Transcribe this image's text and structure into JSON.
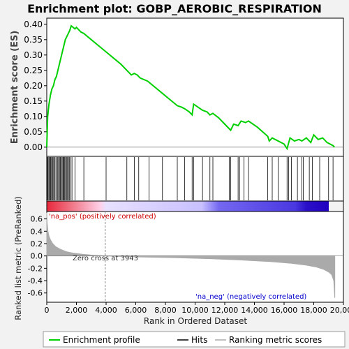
{
  "colors": {
    "background": "#f2f2f2",
    "plot_bg": "#ffffff",
    "enrichment_line": "#00d000",
    "hits": "#000000",
    "ranked_fill": "#aaaaaa",
    "pos_label": "#cc0000",
    "neg_label": "#0000cc",
    "zero_cross_line": "#888888"
  },
  "chart_data": [
    {
      "type": "line",
      "title": "Enrichment plot: GOBP_AEROBIC_RESPIRATION",
      "ylabel": "Enrichment score (ES)",
      "xlim": [
        0,
        20000
      ],
      "ylim": [
        -0.03,
        0.42
      ],
      "yticks": [
        "0.00",
        "0.05",
        "0.10",
        "0.15",
        "0.20",
        "0.25",
        "0.30",
        "0.35",
        "0.40"
      ],
      "grid": false,
      "series": [
        {
          "name": "Enrichment profile",
          "x": [
            0,
            60,
            150,
            250,
            350,
            450,
            550,
            650,
            750,
            850,
            950,
            1050,
            1150,
            1250,
            1350,
            1450,
            1550,
            1650,
            1900,
            2000,
            2300,
            2500,
            3000,
            3500,
            4000,
            4500,
            5000,
            5400,
            5700,
            5900,
            6100,
            6300,
            6800,
            7300,
            7800,
            8300,
            8800,
            9100,
            9300,
            9600,
            9800,
            9900,
            10200,
            10500,
            10800,
            11000,
            11200,
            11600,
            12100,
            12400,
            12600,
            12900,
            13100,
            13400,
            13600,
            14200,
            14900,
            15000,
            15200,
            15400,
            16000,
            16200,
            16400,
            16700,
            17000,
            17200,
            17500,
            17800,
            18000,
            18300,
            18600,
            18900,
            19100,
            19300,
            19400
          ],
          "y": [
            0.0,
            0.1,
            0.14,
            0.17,
            0.19,
            0.2,
            0.22,
            0.23,
            0.25,
            0.27,
            0.29,
            0.31,
            0.33,
            0.35,
            0.36,
            0.37,
            0.38,
            0.395,
            0.385,
            0.39,
            0.375,
            0.37,
            0.35,
            0.33,
            0.31,
            0.29,
            0.27,
            0.25,
            0.235,
            0.24,
            0.235,
            0.225,
            0.215,
            0.195,
            0.175,
            0.155,
            0.135,
            0.13,
            0.125,
            0.115,
            0.105,
            0.14,
            0.13,
            0.12,
            0.115,
            0.105,
            0.11,
            0.095,
            0.07,
            0.055,
            0.075,
            0.07,
            0.085,
            0.08,
            0.085,
            0.065,
            0.035,
            0.02,
            0.03,
            0.025,
            0.01,
            -0.005,
            0.03,
            0.02,
            0.025,
            0.02,
            0.03,
            0.015,
            0.04,
            0.025,
            0.03,
            0.015,
            0.01,
            0.005,
            0.0
          ]
        }
      ]
    },
    {
      "type": "scatter",
      "series": [
        {
          "name": "Hits",
          "x": [
            40,
            90,
            150,
            210,
            260,
            320,
            380,
            430,
            500,
            560,
            640,
            720,
            790,
            860,
            920,
            980,
            1040,
            1100,
            1150,
            1210,
            1270,
            1330,
            1400,
            1460,
            1520,
            1600,
            1700,
            1900,
            2500,
            4000,
            5400,
            5900,
            6200,
            6900,
            7800,
            8800,
            9300,
            9800,
            9900,
            10500,
            11000,
            11200,
            12300,
            12400,
            12900,
            13000,
            13300,
            13600,
            14900,
            15200,
            15600,
            16200,
            16300,
            16500,
            16900,
            17200,
            17300,
            17700,
            17900,
            18400,
            19000,
            19300
          ]
        }
      ]
    },
    {
      "type": "area",
      "xlabel": "Rank in Ordered Dataset",
      "ylabel": "Ranked list metric (PreRanked)",
      "xlim": [
        0,
        20000
      ],
      "ylim": [
        -0.75,
        0.72
      ],
      "xticks": [
        "0",
        "2,000",
        "4,000",
        "6,000",
        "8,000",
        "10,000",
        "12,000",
        "14,000",
        "16,000",
        "18,000",
        "20,000"
      ],
      "yticks": [
        "0.6",
        "0.4",
        "0.2",
        "0.0",
        "-0.2",
        "-0.4",
        "-0.6"
      ],
      "annotations": {
        "zero_cross": "Zero cross at 3943",
        "zero_cross_x": 3943,
        "pos": "'na_pos' (positively correlated)",
        "neg": "'na_neg' (negatively correlated)"
      },
      "series": [
        {
          "name": "Ranking metric scores",
          "x": [
            0,
            20,
            80,
            150,
            250,
            400,
            600,
            900,
            1300,
            1800,
            2500,
            3200,
            3943,
            5000,
            7000,
            9000,
            11000,
            13000,
            15000,
            16500,
            17500,
            18200,
            18700,
            19000,
            19200,
            19350,
            19420
          ],
          "y": [
            0.7,
            0.55,
            0.4,
            0.32,
            0.26,
            0.2,
            0.15,
            0.11,
            0.07,
            0.045,
            0.025,
            0.01,
            0.0,
            -0.01,
            -0.02,
            -0.03,
            -0.045,
            -0.065,
            -0.09,
            -0.12,
            -0.15,
            -0.18,
            -0.22,
            -0.26,
            -0.3,
            -0.4,
            -0.68
          ]
        }
      ]
    }
  ],
  "legend": {
    "items": [
      {
        "label": "Enrichment profile",
        "color": "#00d000"
      },
      {
        "label": "Hits",
        "color": "#000000"
      },
      {
        "label": "Ranking metric scores",
        "color": "#aaaaaa"
      }
    ]
  }
}
